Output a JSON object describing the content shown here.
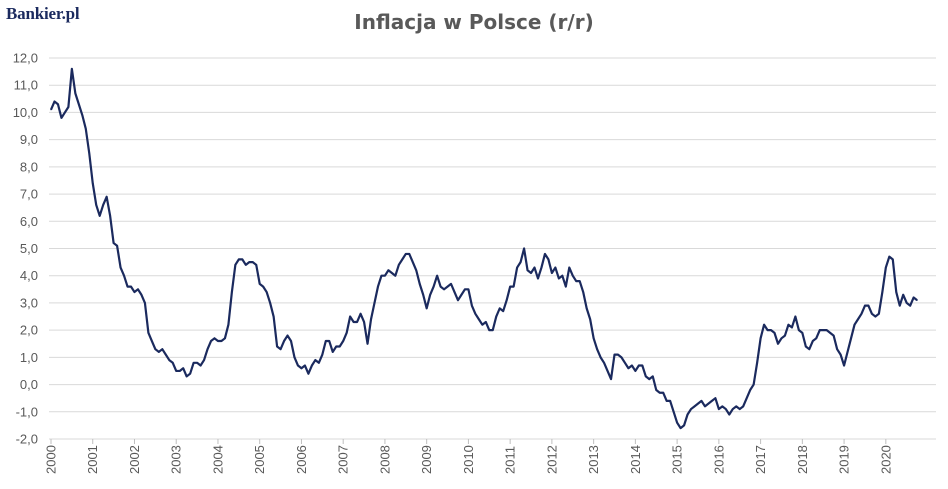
{
  "brand": {
    "logo_text": "Bankier.pl"
  },
  "chart_data": {
    "type": "line",
    "title": "Inflacja w Polsce (r/r)",
    "xlabel": "",
    "ylabel": "",
    "ylim": [
      -2.0,
      12.0
    ],
    "y_ticks": [
      "-2,0",
      "-1,0",
      "0,0",
      "1,0",
      "2,0",
      "3,0",
      "4,0",
      "5,0",
      "6,0",
      "7,0",
      "8,0",
      "9,0",
      "10,0",
      "11,0",
      "12,0"
    ],
    "x_ticks": [
      "2000",
      "2001",
      "2002",
      "2003",
      "2004",
      "2005",
      "2006",
      "2007",
      "2008",
      "2009",
      "2010",
      "2011",
      "2012",
      "2013",
      "2014",
      "2015",
      "2016",
      "2017",
      "2018",
      "2019",
      "2020"
    ],
    "x_start": "2000-01",
    "frequency": "monthly",
    "grid": true,
    "line_color": "#1b2a5e",
    "series": [
      {
        "values": [
          10.1,
          10.4,
          10.3,
          9.8,
          10.0,
          10.2,
          11.6,
          10.7,
          10.3,
          9.9,
          9.4,
          8.5,
          7.4,
          6.6,
          6.2,
          6.6,
          6.9,
          6.2,
          5.2,
          5.1,
          4.3,
          4.0,
          3.6,
          3.6,
          3.4,
          3.5,
          3.3,
          3.0,
          1.9,
          1.6,
          1.3,
          1.2,
          1.3,
          1.1,
          0.9,
          0.8,
          0.5,
          0.5,
          0.6,
          0.3,
          0.4,
          0.8,
          0.8,
          0.7,
          0.9,
          1.3,
          1.6,
          1.7,
          1.6,
          1.6,
          1.7,
          2.2,
          3.4,
          4.4,
          4.6,
          4.6,
          4.4,
          4.5,
          4.5,
          4.4,
          3.7,
          3.6,
          3.4,
          3.0,
          2.5,
          1.4,
          1.3,
          1.6,
          1.8,
          1.6,
          1.0,
          0.7,
          0.6,
          0.7,
          0.4,
          0.7,
          0.9,
          0.8,
          1.1,
          1.6,
          1.6,
          1.2,
          1.4,
          1.4,
          1.6,
          1.9,
          2.5,
          2.3,
          2.3,
          2.6,
          2.3,
          1.5,
          2.4,
          3.0,
          3.6,
          4.0,
          4.0,
          4.2,
          4.1,
          4.0,
          4.4,
          4.6,
          4.8,
          4.8,
          4.5,
          4.2,
          3.7,
          3.3,
          2.8,
          3.3,
          3.6,
          4.0,
          3.6,
          3.5,
          3.6,
          3.7,
          3.4,
          3.1,
          3.3,
          3.5,
          3.5,
          2.9,
          2.6,
          2.4,
          2.2,
          2.3,
          2.0,
          2.0,
          2.5,
          2.8,
          2.7,
          3.1,
          3.6,
          3.6,
          4.3,
          4.5,
          5.0,
          4.2,
          4.1,
          4.3,
          3.9,
          4.3,
          4.8,
          4.6,
          4.1,
          4.3,
          3.9,
          4.0,
          3.6,
          4.3,
          4.0,
          3.8,
          3.8,
          3.4,
          2.8,
          2.4,
          1.7,
          1.3,
          1.0,
          0.8,
          0.5,
          0.2,
          1.1,
          1.1,
          1.0,
          0.8,
          0.6,
          0.7,
          0.5,
          0.7,
          0.7,
          0.3,
          0.2,
          0.3,
          -0.2,
          -0.3,
          -0.3,
          -0.6,
          -0.6,
          -1.0,
          -1.4,
          -1.6,
          -1.5,
          -1.1,
          -0.9,
          -0.8,
          -0.7,
          -0.6,
          -0.8,
          -0.7,
          -0.6,
          -0.5,
          -0.9,
          -0.8,
          -0.9,
          -1.1,
          -0.9,
          -0.8,
          -0.9,
          -0.8,
          -0.5,
          -0.2,
          0.0,
          0.8,
          1.7,
          2.2,
          2.0,
          2.0,
          1.9,
          1.5,
          1.7,
          1.8,
          2.2,
          2.1,
          2.5,
          2.0,
          1.9,
          1.4,
          1.3,
          1.6,
          1.7,
          2.0,
          2.0,
          2.0,
          1.9,
          1.8,
          1.3,
          1.1,
          0.7,
          1.2,
          1.7,
          2.2,
          2.4,
          2.6,
          2.9,
          2.9,
          2.6,
          2.5,
          2.6,
          3.4,
          4.3,
          4.7,
          4.6,
          3.4,
          2.9,
          3.3,
          3.0,
          2.9,
          3.2,
          3.1
        ]
      }
    ]
  }
}
